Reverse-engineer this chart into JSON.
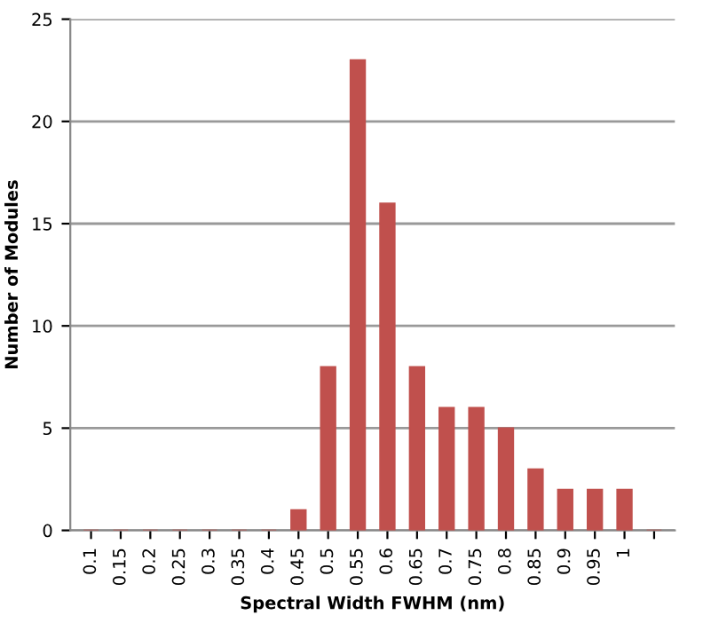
{
  "chart_data": {
    "type": "bar",
    "xlabel": "Spectral Width FWHM (nm)",
    "ylabel": "Number of Modules",
    "categories": [
      "0.1",
      "0.15",
      "0.2",
      "0.25",
      "0.3",
      "0.35",
      "0.4",
      "0.45",
      "0.5",
      "0.55",
      "0.6",
      "0.65",
      "0.7",
      "0.75",
      "0.8",
      "0.85",
      "0.9",
      "0.95",
      "1",
      null
    ],
    "values": [
      0,
      0,
      0,
      0,
      0,
      0,
      0,
      1,
      8,
      23,
      16,
      8,
      6,
      6,
      5,
      3,
      2,
      2,
      2,
      0
    ],
    "color": "#c0504d",
    "ylim": [
      0,
      25
    ],
    "yticks": [
      0,
      5,
      10,
      15,
      20,
      25
    ],
    "grid": "y"
  }
}
